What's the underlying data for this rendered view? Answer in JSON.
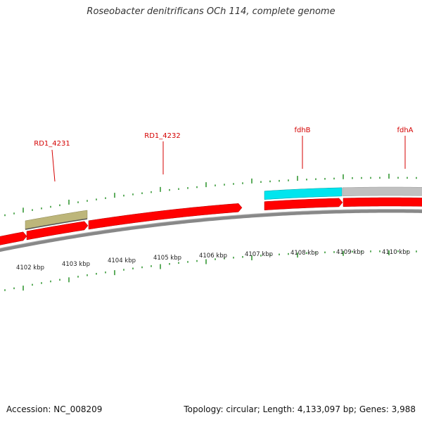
{
  "title": "Roseobacter denitrificans OCh 114, complete genome",
  "footer": {
    "accession": "Accession: NC_008209",
    "summary": "Topology: circular; Length: 4,133,097 bp; Genes: 3,988"
  },
  "colors": {
    "forward_gene": "#ff0000",
    "highlight_gene": "#00e5ee",
    "gray_gene": "#c0c0c0",
    "olive_gene": "#bdb67a",
    "tick": "#1a8a1a",
    "backbone": "#888888",
    "label": "#d40000"
  },
  "scale": {
    "unit": "kbp",
    "labels": [
      "4102 kbp",
      "4103 kbp",
      "4104 kbp",
      "4105 kbp",
      "4106 kbp",
      "4107 kbp",
      "4108 kbp",
      "4109 kbp",
      "4110 kbp"
    ]
  },
  "gene_labels": [
    {
      "name": "RD1_4231"
    },
    {
      "name": "RD1_4232"
    },
    {
      "name": "fdhB"
    },
    {
      "name": "fdhA"
    }
  ]
}
